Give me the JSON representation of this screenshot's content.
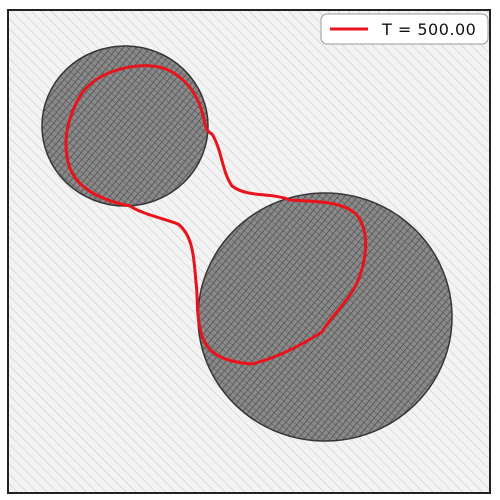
{
  "legend": {
    "label": "T = 500.00",
    "line_color": "#e8131b"
  },
  "colors": {
    "background_hatch": "#bdbdbd",
    "frame": "#222222",
    "disk_fill": "#7a7a7a",
    "disk_hatch": "#3c3c3c",
    "contour": "#e8131b"
  }
}
